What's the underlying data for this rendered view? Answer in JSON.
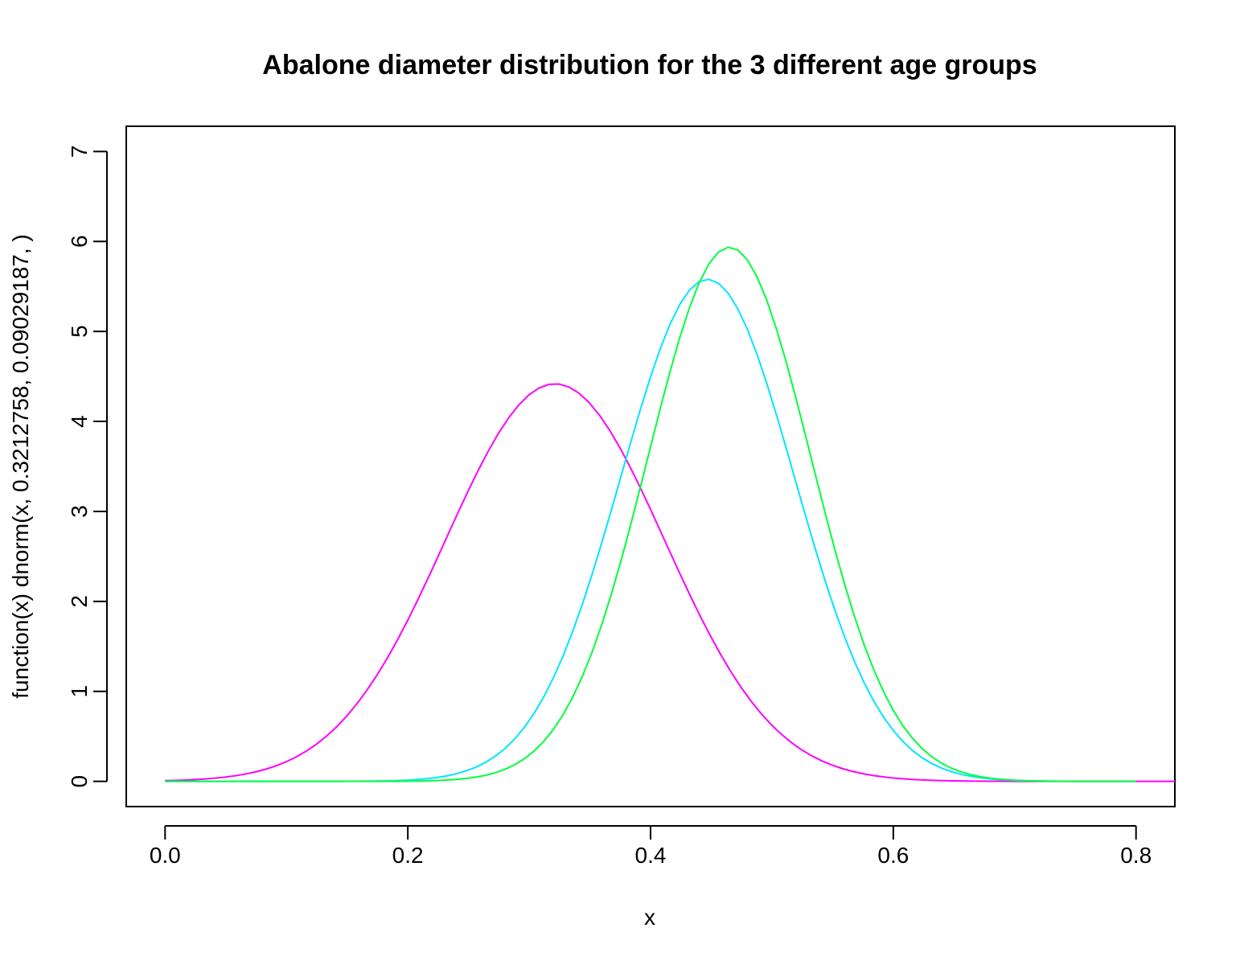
{
  "chart_data": {
    "type": "line",
    "title": "Abalone diameter distribution for the 3 different age groups",
    "xlabel": "x",
    "ylabel": "function(x) dnorm(x, 0.3212758, 0.09029187, )",
    "xlim": [
      -0.032,
      0.832
    ],
    "ylim": [
      -0.28,
      7.28
    ],
    "x_ticks": [
      "0.0",
      "0.2",
      "0.4",
      "0.6",
      "0.8"
    ],
    "x_tick_values": [
      0.0,
      0.2,
      0.4,
      0.6,
      0.8
    ],
    "y_ticks": [
      "0",
      "1",
      "2",
      "3",
      "4",
      "5",
      "6",
      "7"
    ],
    "y_tick_values": [
      0,
      1,
      2,
      3,
      4,
      5,
      6,
      7
    ],
    "grid": false,
    "legend": "none",
    "series": [
      {
        "color": "#FF00FF",
        "mean": 0.3212758,
        "sd": 0.09029187,
        "x_range": [
          0.0,
          0.832
        ],
        "peak_y": 4.42
      },
      {
        "color": "#00E5FF",
        "mean": 0.447,
        "sd": 0.0715,
        "x_range": [
          0.0,
          0.8
        ],
        "peak_y": 5.58
      },
      {
        "color": "#00FF40",
        "mean": 0.465,
        "sd": 0.0672,
        "x_range": [
          0.0,
          0.8
        ],
        "peak_y": 5.94
      }
    ]
  }
}
